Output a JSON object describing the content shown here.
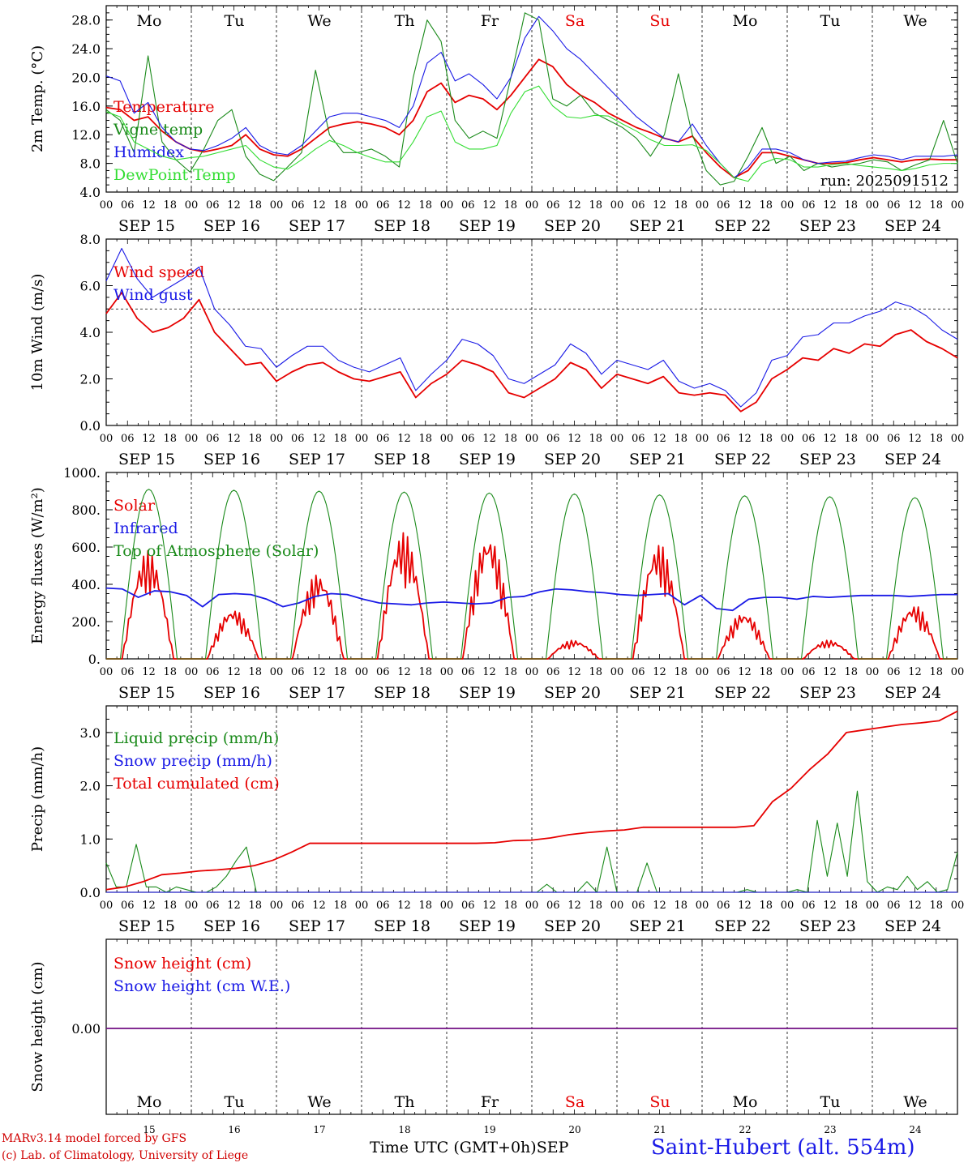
{
  "dates": [
    "SEP 15",
    "SEP 16",
    "SEP 17",
    "SEP 18",
    "SEP 19",
    "SEP 20",
    "SEP 21",
    "SEP 22",
    "SEP 23",
    "SEP 24"
  ],
  "date_numbers": [
    "15",
    "16",
    "17",
    "18",
    "19",
    "20",
    "21",
    "22",
    "23",
    "24"
  ],
  "day_names": [
    "Mo",
    "Tu",
    "We",
    "Th",
    "Fr",
    "Sa",
    "Su",
    "Mo",
    "Tu",
    "We"
  ],
  "weekend_days": [
    5,
    6
  ],
  "hour_ticks": [
    "00",
    "06",
    "12",
    "18"
  ],
  "colors": {
    "red": "#e60000",
    "green": "#1a8a1a",
    "blue": "#1a1ae6",
    "lightgreen": "#33dd33"
  },
  "footer": {
    "model": "MARv3.14 model forced by GFS",
    "lab": "(c) Lab. of Climatology, University of Liege",
    "time_label": "Time UTC (GMT+0h)",
    "month": "SEP",
    "station": "Saint-Hubert (alt. 554m)"
  },
  "chart_data": [
    {
      "type": "line",
      "id": "temperature",
      "ylabel": "2m Temp. (°C)",
      "ylim": [
        4,
        30
      ],
      "yticks": [
        4,
        8,
        12,
        16,
        20,
        24,
        28
      ],
      "ytick_labels": [
        "4.0",
        "8.0",
        "12.0",
        "16.0",
        "20.0",
        "24.0",
        "28.0"
      ],
      "annotation": "run: 2025091512",
      "x_hours_step": 6,
      "series": [
        {
          "name": "Temperature",
          "color": "red",
          "values": [
            15.8,
            15.5,
            14,
            14.5,
            12.5,
            11,
            10,
            9.6,
            10,
            10.5,
            12,
            10,
            9.2,
            9,
            10,
            11.5,
            13,
            13.5,
            13.8,
            13.5,
            13,
            12,
            14,
            18,
            19.2,
            16.5,
            17.5,
            17,
            15.5,
            17.5,
            20,
            22.5,
            21.5,
            19,
            17.5,
            16.5,
            15,
            14,
            13,
            12.3,
            11.5,
            11,
            11.8,
            9.5,
            7.5,
            6,
            7,
            9.5,
            9.5,
            9,
            8.5,
            8,
            8,
            8.1,
            8.5,
            8.8,
            8.5,
            8.2,
            8.5,
            8.6,
            8.5,
            8.5
          ]
        },
        {
          "name": "Vigne temp",
          "color": "green",
          "values": [
            15.5,
            14,
            9.5,
            23,
            11,
            8.5,
            6.8,
            10,
            14,
            15.5,
            9,
            6.5,
            5.6,
            7.5,
            9.5,
            21,
            12,
            9.5,
            9.5,
            10,
            9,
            7.5,
            20,
            28,
            25,
            14,
            11.5,
            12.5,
            11.5,
            20,
            29,
            28,
            17,
            16,
            17.5,
            15,
            14,
            13,
            11.5,
            9,
            12,
            20.5,
            12,
            7,
            5,
            5.5,
            9,
            13,
            8,
            9,
            7,
            8,
            7.5,
            7.8,
            8,
            8.5,
            8.2,
            7,
            7.8,
            8.5,
            14,
            8
          ]
        },
        {
          "name": "Humidex",
          "color": "blue",
          "values": [
            20.2,
            19.5,
            15,
            16.5,
            13,
            11,
            10,
            9.8,
            10.5,
            11.5,
            13,
            10.5,
            9.5,
            9.2,
            10.5,
            12.5,
            14.5,
            15,
            15,
            14.5,
            14,
            13,
            16,
            22,
            23.5,
            19.5,
            20.5,
            19,
            17,
            20,
            25.5,
            28.5,
            26.5,
            24,
            22.5,
            20.5,
            18.5,
            16.5,
            14.5,
            13,
            11.5,
            11,
            13.5,
            10.5,
            8,
            6,
            7.5,
            10,
            10,
            9.5,
            8.5,
            8,
            8.2,
            8.3,
            8.8,
            9.2,
            9,
            8.5,
            9,
            9,
            9,
            9.2
          ]
        },
        {
          "name": "DewPoint Temp",
          "color": "lightgreen",
          "values": [
            15.2,
            14.5,
            11,
            10,
            9,
            8.5,
            8.8,
            9,
            9.5,
            10,
            10.5,
            8.5,
            7.5,
            7.2,
            8.5,
            10,
            11.2,
            10.5,
            9.5,
            8.8,
            8.2,
            8.2,
            11,
            14.5,
            15.3,
            11,
            10,
            10,
            10.5,
            15,
            18,
            18.8,
            16,
            14.5,
            14.3,
            14.7,
            14.6,
            13.5,
            12.5,
            11.3,
            10.5,
            10.5,
            10.6,
            9.8,
            8,
            6,
            5.5,
            8,
            8.7,
            8.5,
            7.5,
            7.5,
            7.8,
            8,
            7.7,
            7.5,
            7.3,
            7,
            7.3,
            7.8,
            8,
            8
          ]
        }
      ]
    },
    {
      "type": "line",
      "id": "wind",
      "ylabel": "10m Wind (m/s)",
      "ylim": [
        0,
        8
      ],
      "yticks": [
        0,
        2,
        4,
        6,
        8
      ],
      "ytick_labels": [
        "0.0",
        "2.0",
        "4.0",
        "6.0",
        "8.0"
      ],
      "reference_line": 5,
      "x_hours_step": 6,
      "series": [
        {
          "name": "Wind speed",
          "color": "red",
          "values": [
            4.8,
            5.7,
            4.6,
            4,
            4.2,
            4.6,
            5.4,
            4,
            3.3,
            2.6,
            2.7,
            1.9,
            2.3,
            2.6,
            2.7,
            2.3,
            2.0,
            1.9,
            2.1,
            2.3,
            1.2,
            1.8,
            2.2,
            2.8,
            2.6,
            2.3,
            1.4,
            1.2,
            1.6,
            2,
            2.7,
            2.4,
            1.6,
            2.2,
            2,
            1.8,
            2.1,
            1.4,
            1.3,
            1.4,
            1.3,
            0.6,
            1,
            2,
            2.4,
            2.9,
            2.8,
            3.3,
            3.1,
            3.5,
            3.4,
            3.9,
            4.1,
            3.6,
            3.3,
            2.9
          ]
        },
        {
          "name": "Wind gust",
          "color": "blue",
          "values": [
            6.2,
            7.6,
            6.3,
            5.5,
            5.9,
            6.3,
            6.8,
            5,
            4.3,
            3.4,
            3.3,
            2.5,
            3.0,
            3.4,
            3.4,
            2.8,
            2.5,
            2.3,
            2.6,
            2.9,
            1.5,
            2.2,
            2.8,
            3.7,
            3.5,
            3,
            2,
            1.8,
            2.2,
            2.6,
            3.5,
            3.1,
            2.2,
            2.8,
            2.6,
            2.4,
            2.8,
            1.9,
            1.6,
            1.8,
            1.5,
            0.8,
            1.4,
            2.8,
            3.0,
            3.8,
            3.9,
            4.4,
            4.4,
            4.7,
            4.9,
            5.3,
            5.1,
            4.7,
            4.1,
            3.7
          ]
        }
      ]
    },
    {
      "type": "line",
      "id": "energy",
      "ylabel": "Energy fluxes (W/m²)",
      "ylim": [
        0,
        1000
      ],
      "yticks": [
        0,
        200,
        400,
        600,
        800,
        1000
      ],
      "ytick_labels": [
        "0.",
        "200.",
        "400.",
        "600.",
        "800.",
        "1000."
      ],
      "day_peaks": {
        "Top of Atmosphere (Solar)": [
          910,
          905,
          900,
          895,
          890,
          885,
          880,
          875,
          870,
          865
        ],
        "Solar": [
          580,
          270,
          460,
          680,
          670,
          100,
          620,
          250,
          100,
          290
        ]
      },
      "series": [
        {
          "name": "Solar",
          "color": "red",
          "values": []
        },
        {
          "name": "Infrared",
          "color": "blue",
          "values": [
            380,
            375,
            330,
            365,
            360,
            340,
            280,
            345,
            350,
            345,
            320,
            280,
            300,
            335,
            350,
            345,
            320,
            300,
            295,
            290,
            300,
            305,
            300,
            295,
            300,
            330,
            335,
            360,
            375,
            370,
            360,
            355,
            345,
            340,
            345,
            350,
            290,
            340,
            270,
            260,
            320,
            330,
            330,
            320,
            335,
            330,
            335,
            340,
            340,
            340,
            335,
            340,
            345,
            345
          ]
        },
        {
          "name": "Top of Atmosphere (Solar)",
          "color": "green",
          "values": []
        }
      ]
    },
    {
      "type": "line",
      "id": "precip",
      "ylabel": "Precip (mm/h)",
      "ylim": [
        0,
        3.5
      ],
      "yticks": [
        0,
        1,
        2,
        3
      ],
      "ytick_labels": [
        "0.0",
        "1.0",
        "2.0",
        "3.0"
      ],
      "series": [
        {
          "name": "Liquid precip (mm/h)",
          "color": "green",
          "values": [
            0.55,
            0.1,
            0.1,
            0.9,
            0.1,
            0.1,
            0,
            0.1,
            0.05,
            0,
            0,
            0.1,
            0.3,
            0.6,
            0.85,
            0,
            0,
            0,
            0,
            0,
            0,
            0,
            0,
            0,
            0,
            0,
            0,
            0,
            0,
            0,
            0,
            0,
            0,
            0,
            0,
            0,
            0,
            0,
            0,
            0,
            0,
            0,
            0,
            0,
            0.15,
            0,
            0,
            0,
            0.2,
            0,
            0.85,
            0,
            0,
            0,
            0.55,
            0,
            0,
            0,
            0,
            0,
            0,
            0,
            0,
            0,
            0.05,
            0,
            0,
            0,
            0,
            0.05,
            0,
            1.35,
            0.3,
            1.3,
            0.3,
            1.9,
            0.2,
            0,
            0.1,
            0.05,
            0.3,
            0.05,
            0.2,
            0,
            0.05,
            0.75
          ]
        },
        {
          "name": "Snow precip (mm/h)",
          "color": "blue",
          "values": [
            0,
            0
          ]
        },
        {
          "name": "Total cumulated (cm)",
          "color": "red",
          "values": [
            0.05,
            0.1,
            0.2,
            0.33,
            0.36,
            0.4,
            0.42,
            0.45,
            0.5,
            0.6,
            0.75,
            0.92,
            0.92,
            0.92,
            0.92,
            0.92,
            0.92,
            0.92,
            0.92,
            0.92,
            0.92,
            0.93,
            0.97,
            0.98,
            1.02,
            1.08,
            1.12,
            1.15,
            1.17,
            1.22,
            1.22,
            1.22,
            1.22,
            1.22,
            1.22,
            1.25,
            1.7,
            1.95,
            2.3,
            2.6,
            3.0,
            3.05,
            3.1,
            3.15,
            3.18,
            3.22,
            3.4
          ]
        }
      ]
    },
    {
      "type": "line",
      "id": "snow",
      "ylabel": "Snow height (cm)",
      "yticks": [
        0
      ],
      "ytick_labels": [
        "0.00"
      ],
      "series": [
        {
          "name": "Snow height (cm)",
          "color": "red",
          "values": [
            0,
            0
          ]
        },
        {
          "name": "Snow height (cm W.E.)",
          "color": "blue",
          "values": [
            0,
            0
          ]
        }
      ]
    }
  ]
}
